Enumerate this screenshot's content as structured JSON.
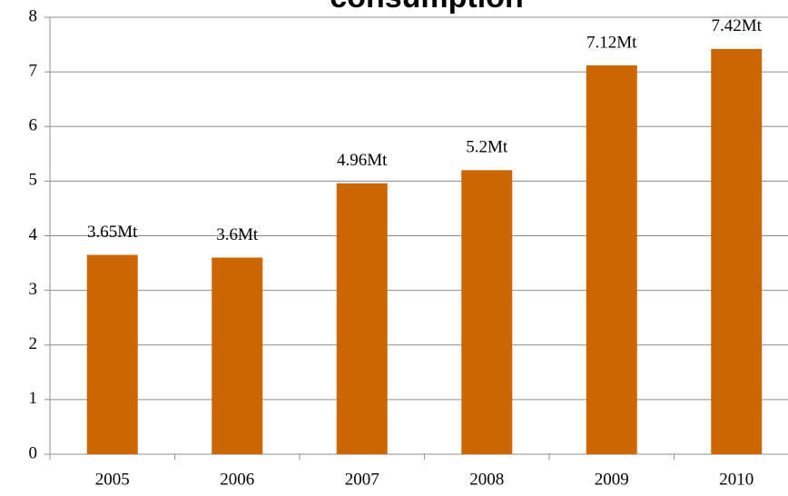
{
  "chart_data": {
    "type": "bar",
    "title": "consumption",
    "categories": [
      "2005",
      "2006",
      "2007",
      "2008",
      "2009",
      "2010"
    ],
    "values": [
      3.65,
      3.6,
      4.96,
      5.2,
      7.12,
      7.42
    ],
    "value_labels": [
      "3.65Mt",
      "3.6Mt",
      "4.96Mt",
      "5.2Mt",
      "7.12Mt",
      "7.42Mt"
    ],
    "color": "#cc6600",
    "ylim": [
      0,
      8
    ],
    "yticks": [
      0,
      1,
      2,
      3,
      4,
      5,
      6,
      7,
      8
    ],
    "grid": true
  }
}
